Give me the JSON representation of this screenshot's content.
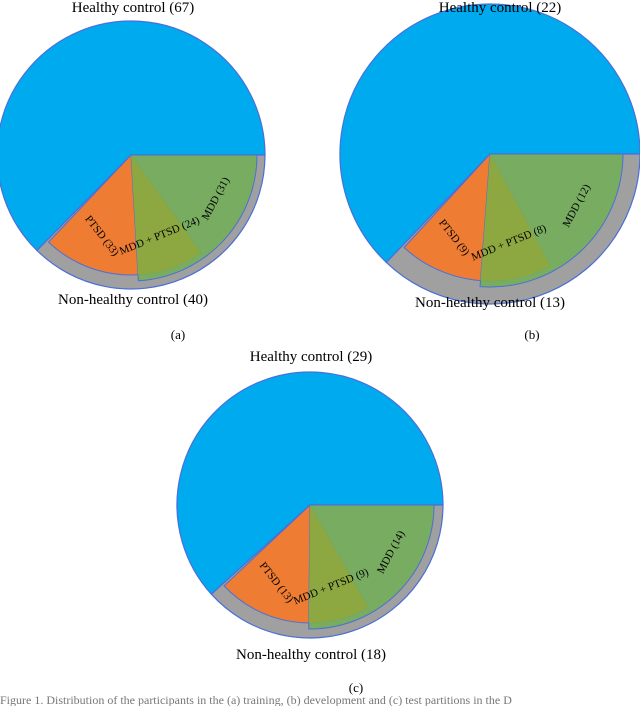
{
  "figure": {
    "caption": "Figure 1. Distribution of the participants in the (a) training, (b) development and (c) test partitions in the D"
  },
  "chart_data": [
    {
      "type": "pie",
      "panel_label": "(a)",
      "top_label": "Healthy control (67)",
      "bottom_label": "Non-healthy control (40)",
      "outer_slices": [
        {
          "name": "Healthy control",
          "value": 67,
          "color": "#00aaee"
        },
        {
          "name": "Non-healthy control",
          "value": 40,
          "color": "#a0a0a0"
        }
      ],
      "inner_slices": [
        {
          "label": "PTSD (33)",
          "value": 33,
          "color": "#ee7d33"
        },
        {
          "label": "MDD + PTSD (24)",
          "value": 24,
          "color": "#8ea840"
        },
        {
          "label": "MDD (31)",
          "value": 31,
          "color": "#72ad5a"
        }
      ]
    },
    {
      "type": "pie",
      "panel_label": "(b)",
      "top_label": "Healthy control (22)",
      "bottom_label": "Non-healthy control (13)",
      "outer_slices": [
        {
          "name": "Healthy control",
          "value": 22,
          "color": "#00aaee"
        },
        {
          "name": "Non-healthy control",
          "value": 13,
          "color": "#a0a0a0"
        }
      ],
      "inner_slices": [
        {
          "label": "PTSD (9)",
          "value": 9,
          "color": "#ee7d33"
        },
        {
          "label": "MDD + PTSD (8)",
          "value": 8,
          "color": "#8ea840"
        },
        {
          "label": "MDD (12)",
          "value": 12,
          "color": "#72ad5a"
        }
      ]
    },
    {
      "type": "pie",
      "panel_label": "(c)",
      "top_label": "Healthy control (29)",
      "bottom_label": "Non-healthy control (18)",
      "outer_slices": [
        {
          "name": "Healthy control",
          "value": 29,
          "color": "#00aaee"
        },
        {
          "name": "Non-healthy control",
          "value": 18,
          "color": "#a0a0a0"
        }
      ],
      "inner_slices": [
        {
          "label": "PTSD (13)",
          "value": 13,
          "color": "#ee7d33"
        },
        {
          "label": "MDD + PTSD (9)",
          "value": 9,
          "color": "#8ea840"
        },
        {
          "label": "MDD (14)",
          "value": 14,
          "color": "#72ad5a"
        }
      ]
    }
  ],
  "style": {
    "outline_color": "#4a6fd8",
    "overlap_color": "#8ea840"
  }
}
